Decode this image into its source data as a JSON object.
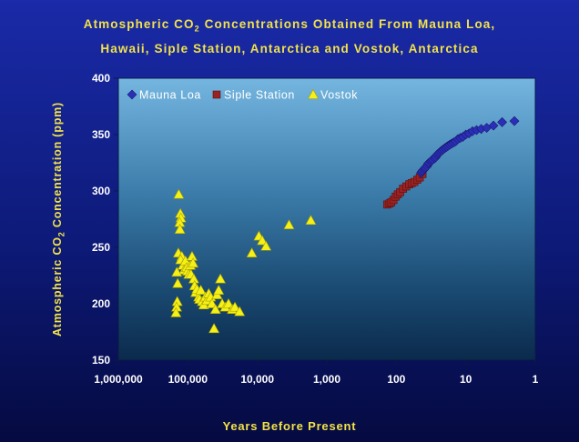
{
  "chart_data": {
    "type": "scatter",
    "title_line1_pre": "Atmospheric CO",
    "title_sub": "2",
    "title_line1_post": " Concentrations Obtained From Mauna Loa,",
    "title_line2": "Hawaii, Siple Station, Antarctica and Vostok, Antarctica",
    "xlabel": "Years Before Present",
    "ylabel_pre": "Atmospheric CO",
    "ylabel_sub": "2",
    "ylabel_post": " Concentration (ppm)",
    "x_scale": "log-reversed",
    "xlim": [
      1000000,
      1
    ],
    "ylim": [
      150,
      400
    ],
    "x_ticks": [
      {
        "value": 1000000,
        "label": "1,000,000"
      },
      {
        "value": 100000,
        "label": "100,000"
      },
      {
        "value": 10000,
        "label": "10,000"
      },
      {
        "value": 1000,
        "label": "1,000"
      },
      {
        "value": 100,
        "label": "100"
      },
      {
        "value": 10,
        "label": "10"
      },
      {
        "value": 1,
        "label": "1"
      }
    ],
    "y_ticks": [
      150,
      200,
      250,
      300,
      350,
      400
    ],
    "grid": false,
    "legend_position": "top-left",
    "series": [
      {
        "name": "Mauna Loa",
        "marker": "diamond",
        "color": "#2b2fb8",
        "points": [
          [
            44,
            316
          ],
          [
            43,
            317
          ],
          [
            42,
            318
          ],
          [
            40,
            319
          ],
          [
            39,
            320
          ],
          [
            38,
            321
          ],
          [
            36,
            322
          ],
          [
            35,
            324
          ],
          [
            34,
            325
          ],
          [
            32,
            326
          ],
          [
            31,
            327
          ],
          [
            30,
            328
          ],
          [
            28,
            329
          ],
          [
            27,
            330
          ],
          [
            26,
            332
          ],
          [
            25,
            333
          ],
          [
            24,
            334
          ],
          [
            23,
            335
          ],
          [
            22,
            336
          ],
          [
            21,
            337
          ],
          [
            20,
            338
          ],
          [
            19,
            339
          ],
          [
            18,
            340
          ],
          [
            17,
            341
          ],
          [
            16,
            342
          ],
          [
            15,
            343
          ],
          [
            14,
            344
          ],
          [
            13,
            346
          ],
          [
            12,
            347
          ],
          [
            11,
            348
          ],
          [
            10,
            350
          ],
          [
            9,
            351
          ],
          [
            8,
            353
          ],
          [
            7,
            354
          ],
          [
            6,
            355
          ],
          [
            5,
            356
          ],
          [
            4,
            358
          ],
          [
            3,
            361
          ],
          [
            2,
            362
          ]
        ]
      },
      {
        "name": "Siple Station",
        "marker": "square",
        "color": "#9a2222",
        "points": [
          [
            135,
            288
          ],
          [
            125,
            289
          ],
          [
            118,
            290
          ],
          [
            110,
            292
          ],
          [
            102,
            295
          ],
          [
            95,
            297
          ],
          [
            88,
            299
          ],
          [
            80,
            302
          ],
          [
            72,
            304
          ],
          [
            65,
            306
          ],
          [
            60,
            307
          ],
          [
            55,
            308
          ],
          [
            50,
            310
          ],
          [
            46,
            312
          ],
          [
            42,
            315
          ]
        ]
      },
      {
        "name": "Vostok",
        "marker": "triangle",
        "color": "#f5f018",
        "points": [
          [
            135000,
            297
          ],
          [
            128000,
            280
          ],
          [
            126000,
            276
          ],
          [
            131000,
            272
          ],
          [
            130000,
            266
          ],
          [
            137000,
            245
          ],
          [
            122000,
            242
          ],
          [
            127000,
            239
          ],
          [
            118000,
            234
          ],
          [
            113000,
            230
          ],
          [
            108000,
            238
          ],
          [
            104000,
            232
          ],
          [
            101000,
            229
          ],
          [
            97000,
            226
          ],
          [
            92000,
            234
          ],
          [
            90000,
            226
          ],
          [
            87000,
            242
          ],
          [
            84000,
            236
          ],
          [
            82000,
            222
          ],
          [
            80000,
            216
          ],
          [
            77000,
            210
          ],
          [
            74000,
            213
          ],
          [
            70000,
            206
          ],
          [
            68000,
            204
          ],
          [
            65000,
            212
          ],
          [
            62000,
            202
          ],
          [
            59000,
            199
          ],
          [
            56000,
            206
          ],
          [
            53000,
            203
          ],
          [
            50000,
            209
          ],
          [
            47000,
            206
          ],
          [
            45000,
            200
          ],
          [
            42000,
            178
          ],
          [
            40000,
            195
          ],
          [
            38000,
            208
          ],
          [
            36000,
            212
          ],
          [
            34000,
            222
          ],
          [
            32000,
            200
          ],
          [
            29000,
            197
          ],
          [
            26000,
            200
          ],
          [
            23000,
            195
          ],
          [
            21000,
            197
          ],
          [
            18000,
            193
          ],
          [
            140000,
            218
          ],
          [
            142000,
            202
          ],
          [
            145000,
            197
          ],
          [
            148000,
            192
          ],
          [
            144000,
            228
          ],
          [
            12000,
            245
          ],
          [
            9500,
            260
          ],
          [
            8500,
            256
          ],
          [
            7500,
            251
          ],
          [
            3500,
            270
          ],
          [
            1700,
            274
          ]
        ]
      }
    ]
  }
}
